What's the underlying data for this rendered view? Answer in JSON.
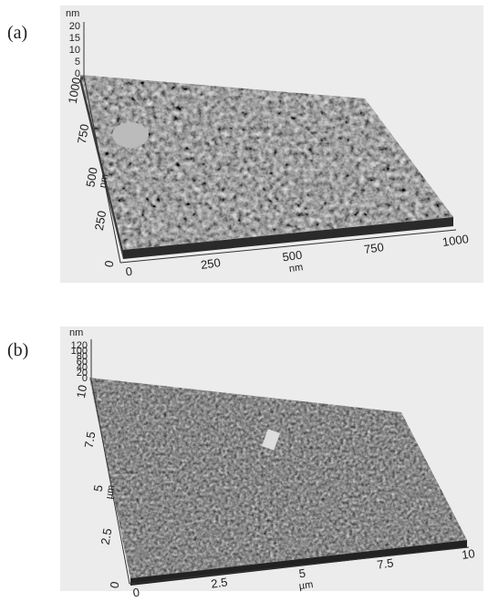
{
  "panels": [
    {
      "label": "(a)",
      "z_unit": "nm",
      "z_ticks": [
        "20",
        "15",
        "10",
        "5",
        "0"
      ],
      "y_unit": "nm",
      "y_ticks": [
        "0",
        "250",
        "500",
        "750",
        "1000"
      ],
      "x_unit": "nm",
      "x_ticks": [
        "0",
        "250",
        "500",
        "750",
        "1000"
      ]
    },
    {
      "label": "(b)",
      "z_unit": "nm",
      "z_ticks": [
        "120",
        "100",
        "80",
        "60",
        "40",
        "20",
        "0"
      ],
      "y_unit": "µm",
      "y_ticks": [
        "0",
        "2.5",
        "5",
        "7.5",
        "10"
      ],
      "x_unit": "µm",
      "x_ticks": [
        "0",
        "2.5",
        "5",
        "7.5",
        "10"
      ]
    }
  ]
}
